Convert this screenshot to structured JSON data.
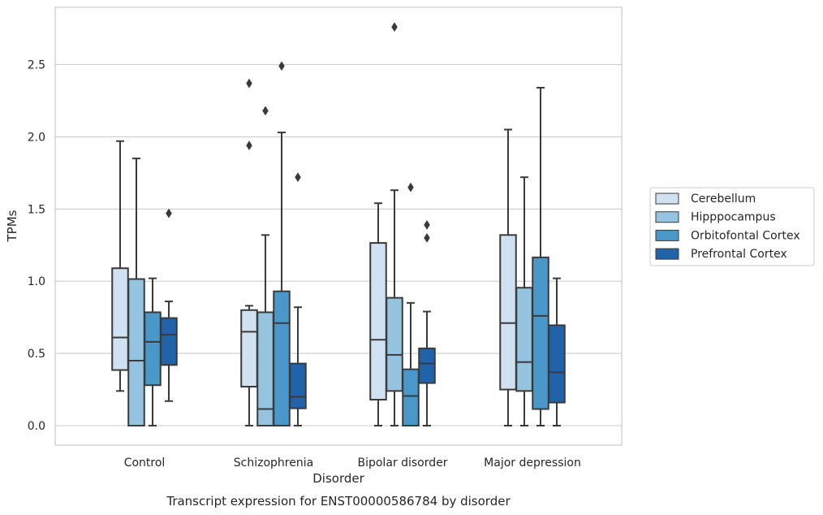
{
  "chart_data": {
    "type": "box",
    "title": "",
    "caption": "Transcript expression for ENST00000586784 by disorder",
    "xlabel": "Disorder",
    "ylabel": "TPMs",
    "ylim": [
      -0.13,
      2.9
    ],
    "yticks": [
      0.0,
      0.5,
      1.0,
      1.5,
      2.0,
      2.5
    ],
    "ytick_labels": [
      "0.0",
      "0.5",
      "1.0",
      "1.5",
      "2.0",
      "2.5"
    ],
    "grid": true,
    "legend_position": "right",
    "categories": [
      "Control",
      "Schizophrenia",
      "Bipolar disorder",
      "Major depression"
    ],
    "series": [
      {
        "name": "Cerebellum",
        "color": "#d0e1f2",
        "boxes": [
          {
            "whislo": 0.24,
            "q1": 0.385,
            "med": 0.61,
            "q3": 1.09,
            "whishi": 1.97,
            "fliers": []
          },
          {
            "whislo": 0.0,
            "q1": 0.27,
            "med": 0.65,
            "q3": 0.8,
            "whishi": 0.83,
            "fliers": [
              1.94,
              2.37
            ]
          },
          {
            "whislo": 0.0,
            "q1": 0.18,
            "med": 0.595,
            "q3": 1.265,
            "whishi": 1.54,
            "fliers": []
          },
          {
            "whislo": 0.0,
            "q1": 0.25,
            "med": 0.71,
            "q3": 1.32,
            "whishi": 2.05,
            "fliers": []
          }
        ]
      },
      {
        "name": "Hipppocampus",
        "color": "#94c4df",
        "boxes": [
          {
            "whislo": 0.0,
            "q1": 0.0,
            "med": 0.45,
            "q3": 1.015,
            "whishi": 1.85,
            "fliers": []
          },
          {
            "whislo": 0.0,
            "q1": 0.0,
            "med": 0.115,
            "q3": 0.785,
            "whishi": 1.32,
            "fliers": [
              2.18
            ]
          },
          {
            "whislo": 0.0,
            "q1": 0.24,
            "med": 0.49,
            "q3": 0.885,
            "whishi": 1.63,
            "fliers": [
              2.76
            ]
          },
          {
            "whislo": 0.0,
            "q1": 0.24,
            "med": 0.44,
            "q3": 0.955,
            "whishi": 1.72,
            "fliers": []
          }
        ]
      },
      {
        "name": "Orbitofontal Cortex",
        "color": "#4a98c9",
        "boxes": [
          {
            "whislo": 0.0,
            "q1": 0.28,
            "med": 0.58,
            "q3": 0.785,
            "whishi": 1.02,
            "fliers": []
          },
          {
            "whislo": 0.0,
            "q1": 0.0,
            "med": 0.71,
            "q3": 0.93,
            "whishi": 2.03,
            "fliers": [
              2.49
            ]
          },
          {
            "whislo": 0.0,
            "q1": 0.0,
            "med": 0.205,
            "q3": 0.39,
            "whishi": 0.85,
            "fliers": [
              1.65
            ]
          },
          {
            "whislo": 0.0,
            "q1": 0.115,
            "med": 0.76,
            "q3": 1.165,
            "whishi": 2.34,
            "fliers": []
          }
        ]
      },
      {
        "name": "Prefrontal Cortex",
        "color": "#2163aa",
        "boxes": [
          {
            "whislo": 0.17,
            "q1": 0.42,
            "med": 0.63,
            "q3": 0.745,
            "whishi": 0.86,
            "fliers": [
              1.47
            ]
          },
          {
            "whislo": 0.0,
            "q1": 0.12,
            "med": 0.2,
            "q3": 0.43,
            "whishi": 0.82,
            "fliers": [
              1.72
            ]
          },
          {
            "whislo": 0.0,
            "q1": 0.295,
            "med": 0.43,
            "q3": 0.535,
            "whishi": 0.79,
            "fliers": [
              1.3,
              1.39
            ]
          },
          {
            "whislo": 0.0,
            "q1": 0.16,
            "med": 0.37,
            "q3": 0.695,
            "whishi": 1.02,
            "fliers": []
          }
        ]
      }
    ]
  }
}
